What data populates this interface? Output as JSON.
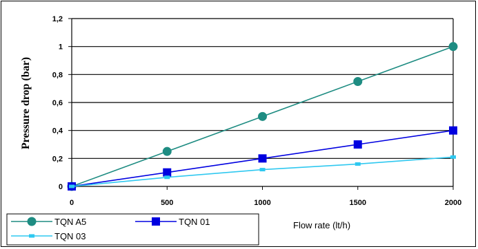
{
  "chart_data": {
    "type": "line",
    "xlabel": "Flow rate (lt/h)",
    "ylabel": "Pressure drop  (bar)",
    "x": [
      0,
      500,
      1000,
      1500,
      2000
    ],
    "xlim": [
      0,
      2000
    ],
    "ylim": [
      0,
      1.2
    ],
    "x_ticks": [
      "0",
      "500",
      "1000",
      "1500",
      "2000"
    ],
    "y_ticks": [
      "0",
      "0,2",
      "0,4",
      "0,6",
      "0,8",
      "1",
      "1,2"
    ],
    "grid": "horizontal",
    "legend_position": "bottom-left",
    "series": [
      {
        "name": "TQN A5",
        "values": [
          0,
          0.25,
          0.5,
          0.75,
          1.0
        ],
        "color": "#1e8c82",
        "marker": "circle"
      },
      {
        "name": "TQN 01",
        "values": [
          0,
          0.1,
          0.2,
          0.3,
          0.4
        ],
        "color": "#0000e0",
        "marker": "square"
      },
      {
        "name": "TQN 03",
        "values": [
          0,
          0.065,
          0.12,
          0.16,
          0.21
        ],
        "color": "#2ec8f0",
        "marker": "small-square"
      }
    ]
  }
}
